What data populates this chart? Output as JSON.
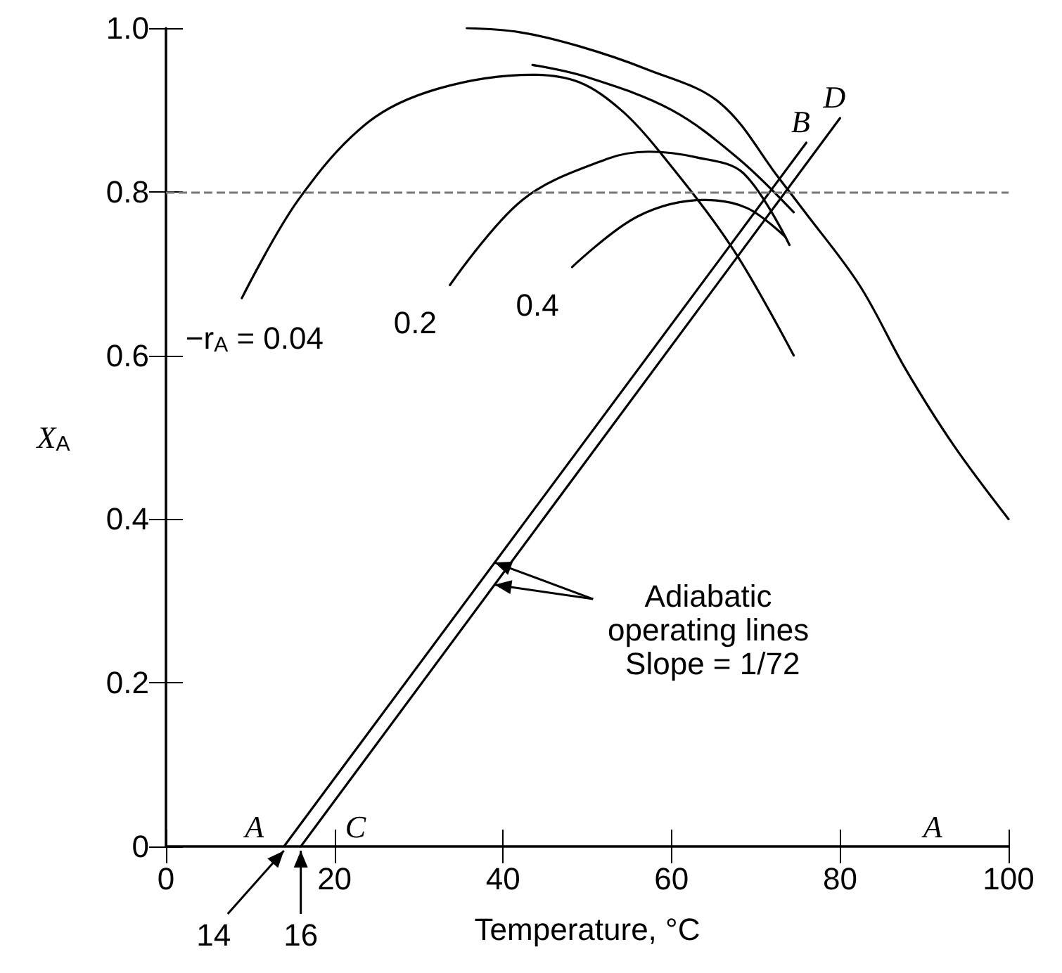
{
  "chart_data": {
    "type": "line",
    "xlabel": "Temperature, °C",
    "ylabel": "X$_{A}$",
    "xlim": [
      0,
      100
    ],
    "ylim": [
      0,
      1
    ],
    "xticks": [
      0,
      20,
      40,
      60,
      80,
      100
    ],
    "yticks": [
      0,
      0.2,
      0.4,
      0.6,
      0.8,
      {
        "value": 1,
        "label": "1.0"
      }
    ],
    "grid": false,
    "legend": false,
    "marker": "none",
    "line_style": "solid",
    "series": [
      {
        "color": "#000000",
        "x": [
          35.7,
          42,
          49,
          57,
          65.7,
          72.8,
          75.7,
          82.3,
          87.8,
          93.5,
          100
        ],
        "values": [
          1.0,
          0.995,
          0.978,
          0.95,
          0.909,
          0.816,
          0.777,
          0.686,
          0.583,
          0.49,
          0.4
        ]
      },
      {
        "name": "−r$_{A}$ = 0.04",
        "color": "#000000",
        "x": [
          9,
          15.7,
          24,
          32.3,
          43.5,
          49,
          54,
          58.5,
          67.3,
          74.5
        ],
        "values": [
          0.67,
          0.79,
          0.885,
          0.926,
          0.943,
          0.934,
          0.9,
          0.85,
          0.73,
          0.6
        ]
      },
      {
        "color": "#000000",
        "x": [
          43.5,
          50,
          60,
          68,
          74.5
        ],
        "values": [
          0.955,
          0.94,
          0.9,
          0.84,
          0.775
        ]
      },
      {
        "name": "0.2",
        "color": "#000000",
        "x": [
          33.7,
          42.3,
          52.3,
          57.3,
          63,
          68.5,
          74
        ],
        "values": [
          0.686,
          0.79,
          0.84,
          0.849,
          0.842,
          0.823,
          0.735
        ]
      },
      {
        "name": "0.4",
        "color": "#000000",
        "x": [
          48.2,
          56,
          64,
          69,
          73.5
        ],
        "values": [
          0.708,
          0.77,
          0.79,
          0.78,
          0.745
        ]
      },
      {
        "name": "B",
        "color": "#000000",
        "x": [
          14,
          76
        ],
        "values": [
          0,
          0.86
        ]
      },
      {
        "name": "D",
        "color": "#000000",
        "x": [
          16,
          80
        ],
        "values": [
          0,
          0.89
        ]
      }
    ],
    "ref_lines": [
      {
        "axis": "y",
        "value": 0.8,
        "color": "#777777",
        "line_style": "dashed"
      }
    ],
    "annotations": [
      "A",
      "C",
      "A",
      {
        "text": "14",
        "x": 14,
        "y": 0
      },
      {
        "text": "16",
        "x": 16,
        "y": 0
      },
      {
        "text": "Adiabatic operating lines Slope = 1/72",
        "x": 39,
        "y": 0.347
      }
    ]
  }
}
